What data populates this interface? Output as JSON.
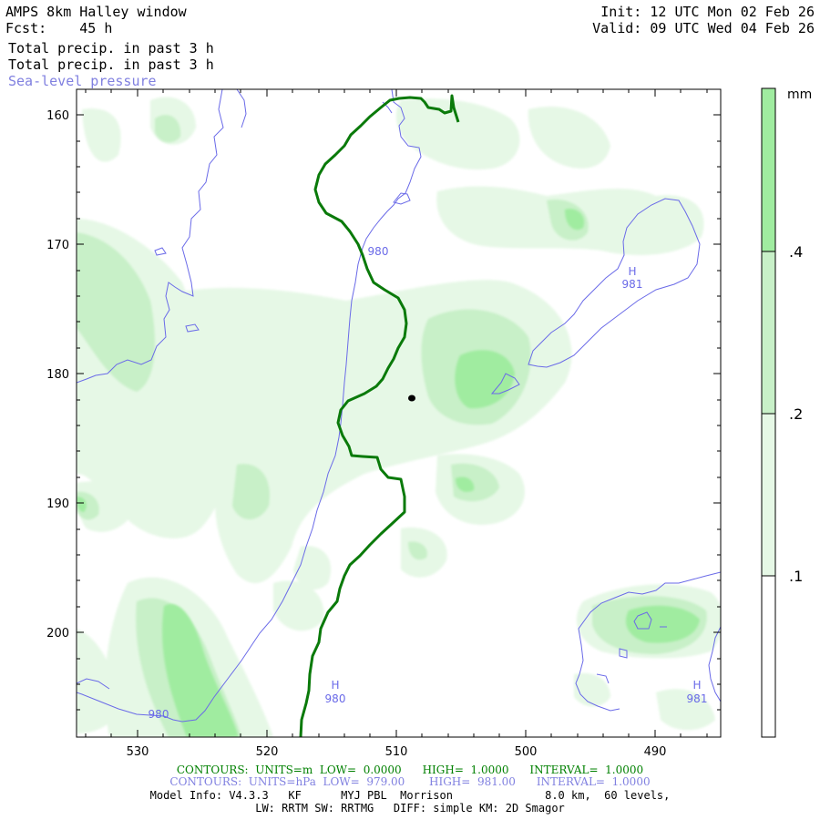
{
  "header": {
    "title": "AMPS 8km Halley window",
    "fcst": "Fcst:    45 h",
    "field_line_1": "Total precip. in past 3 h",
    "field_line_2": "Total precip. in past 3 h",
    "field_line_3": "Sea-level pressure",
    "init": "Init: 12 UTC Mon 02 Feb 26",
    "valid": "Valid: 09 UTC Wed 04 Feb 26"
  },
  "axes": {
    "y_ticks": [
      "160",
      "170",
      "180",
      "190",
      "200"
    ],
    "x_ticks": [
      "530",
      "520",
      "510",
      "500",
      "490"
    ]
  },
  "colorbar": {
    "unit": "mm",
    "levels": [
      ".1",
      ".2",
      ".4"
    ],
    "colors": [
      "#ffffff",
      "#e6f8e6",
      "#c8f0c8",
      "#a0eca0"
    ]
  },
  "map_labels": {
    "isobar_980_a": "980",
    "isobar_980_b": "980",
    "high_1_letter": "H",
    "high_1_value": "981",
    "high_2_letter": "H",
    "high_2_value": "980",
    "high_3_letter": "H",
    "high_3_value": "981"
  },
  "colors": {
    "isobar": "#6a6ae8",
    "green_contour": "#0a7a0a",
    "shade_light": "#e6f8e6",
    "shade_mid": "#c8f0c8",
    "shade_dark": "#a0eca0"
  },
  "footer": {
    "green_line": "CONTOURS:  UNITS=m  LOW=  0.0000      HIGH=  1.0000      INTERVAL=  1.0000",
    "blue_line": "CONTOURS:  UNITS=hPa  LOW=  979.00       HIGH=  981.00      INTERVAL=  1.0000",
    "model_info_1": "Model Info: V4.3.3   KF      MYJ PBL  Morrison              8.0 km,  60 levels,",
    "model_info_2": "LW: RRTM SW: RRTMG   DIFF: simple KM: 2D Smagor"
  }
}
